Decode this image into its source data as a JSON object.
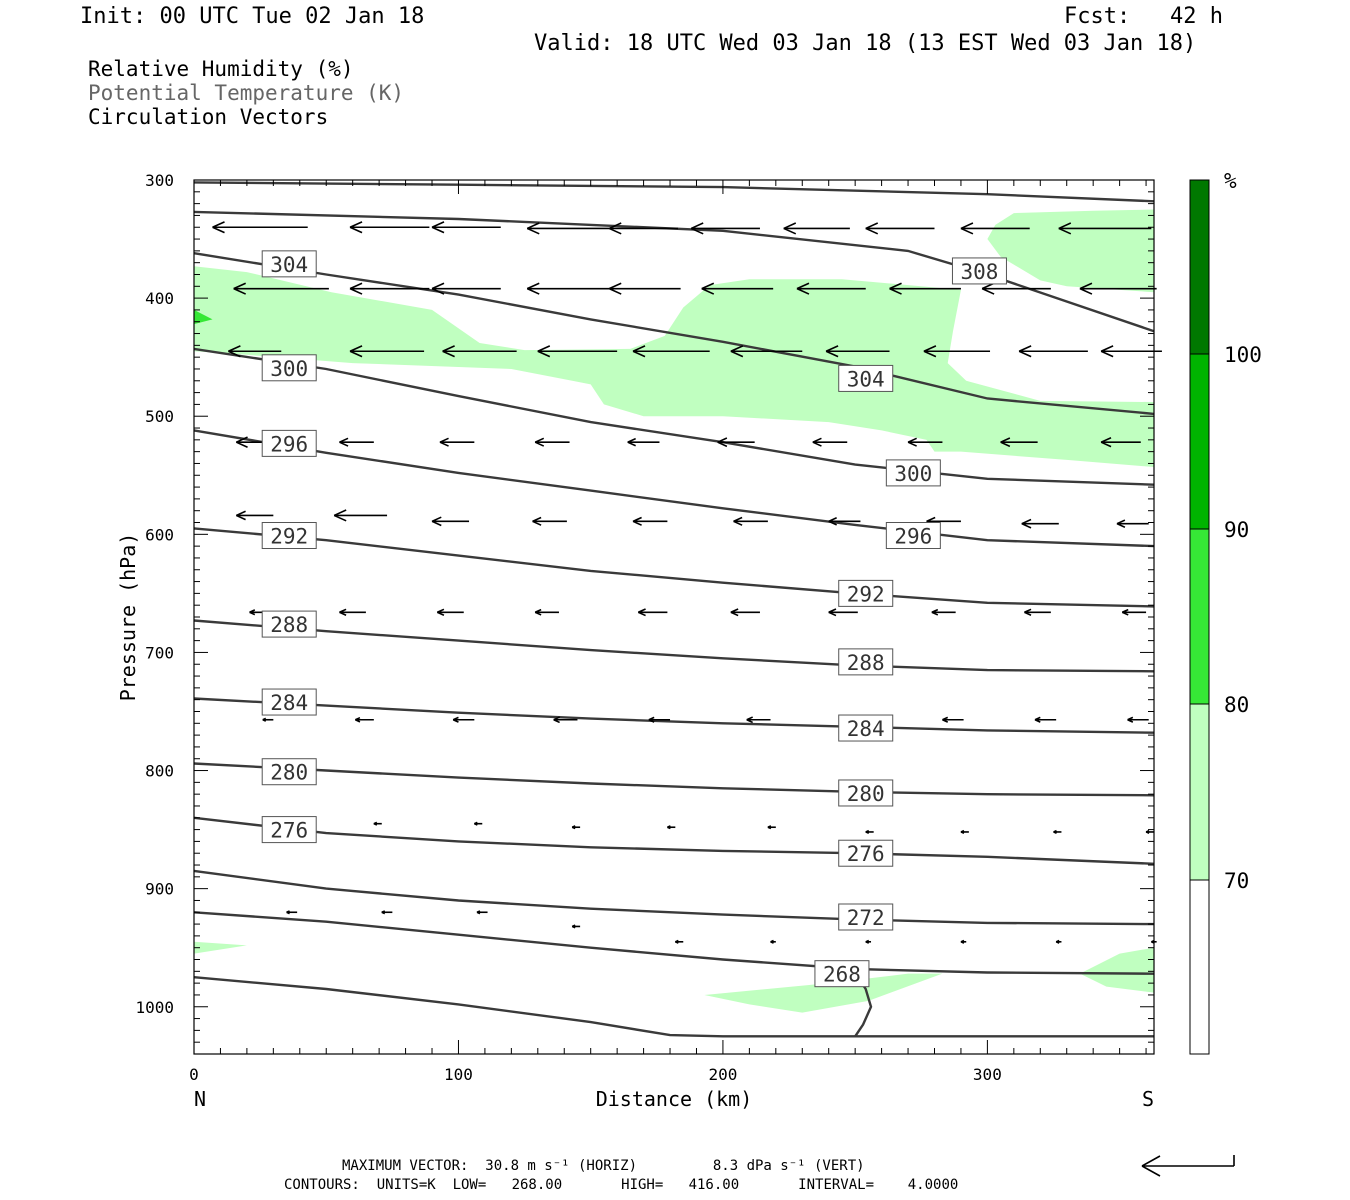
{
  "header": {
    "init": "Init: 00 UTC Tue 02 Jan 18",
    "fcst": "Fcst:   42 h",
    "valid": "Valid: 18 UTC Wed 03 Jan 18 (13 EST Wed 03 Jan 18)"
  },
  "legend": {
    "line1": "Relative Humidity (%)",
    "line2": "Potential Temperature (K)",
    "line3": "Circulation Vectors"
  },
  "footer": {
    "line1": "MAXIMUM VECTOR:  30.8 m s⁻¹ (HORIZ)         8.3 dPa s⁻¹ (VERT)",
    "line2": "CONTOURS:  UNITS=K  LOW=   268.00       HIGH=   416.00       INTERVAL=    4.0000"
  },
  "colors": {
    "rh70": "#c0ffc0",
    "rh80": "#36e836",
    "rh90": "#00b400",
    "rh100": "#007800",
    "theta": "#3a3a3a"
  },
  "chart_data": {
    "type": "contour",
    "xlabel": "Distance (km)",
    "ylabel": "Pressure (hPa)",
    "xlim": [
      0,
      363
    ],
    "ylim": [
      1040,
      300
    ],
    "xticks": [
      0,
      100,
      200,
      300
    ],
    "yticks": [
      300,
      400,
      500,
      600,
      700,
      800,
      900,
      1000
    ],
    "x_end_labels": {
      "left": "N",
      "right": "S"
    },
    "colorbar": {
      "unit": "%",
      "levels": [
        70,
        80,
        90,
        100
      ],
      "labels": [
        "70",
        "80",
        "90",
        "100"
      ]
    },
    "rh_fill_70": [
      [
        [
          0,
          373
        ],
        [
          20,
          378
        ],
        [
          52,
          395
        ],
        [
          90,
          410
        ],
        [
          108,
          438
        ],
        [
          125,
          444
        ],
        [
          165,
          443
        ],
        [
          178,
          432
        ],
        [
          185,
          408
        ],
        [
          195,
          389
        ],
        [
          210,
          384
        ],
        [
          245,
          384
        ],
        [
          290,
          393
        ],
        [
          287,
          428
        ],
        [
          285,
          455
        ],
        [
          292,
          470
        ],
        [
          320,
          487
        ],
        [
          363,
          488
        ],
        [
          363,
          543
        ],
        [
          330,
          537
        ],
        [
          290,
          530
        ],
        [
          280,
          530
        ],
        [
          277,
          520
        ],
        [
          260,
          512
        ],
        [
          240,
          505
        ],
        [
          200,
          500
        ],
        [
          170,
          500
        ],
        [
          155,
          490
        ],
        [
          150,
          473
        ],
        [
          120,
          460
        ],
        [
          60,
          455
        ],
        [
          20,
          448
        ],
        [
          0,
          445
        ]
      ],
      [
        [
          303,
          338
        ],
        [
          310,
          328
        ],
        [
          340,
          326
        ],
        [
          363,
          325
        ],
        [
          363,
          395
        ],
        [
          350,
          393
        ],
        [
          330,
          390
        ],
        [
          320,
          385
        ],
        [
          305,
          365
        ],
        [
          300,
          350
        ]
      ],
      [
        [
          0,
          945
        ],
        [
          20,
          948
        ],
        [
          0,
          955
        ]
      ],
      [
        [
          193,
          990
        ],
        [
          240,
          980
        ],
        [
          270,
          972
        ],
        [
          283,
          972
        ],
        [
          255,
          995
        ],
        [
          230,
          1005
        ],
        [
          210,
          998
        ]
      ],
      [
        [
          335,
          972
        ],
        [
          350,
          955
        ],
        [
          363,
          950
        ],
        [
          363,
          988
        ],
        [
          345,
          983
        ]
      ]
    ],
    "rh_fill_80": [
      [
        [
          0,
          410
        ],
        [
          7,
          418
        ],
        [
          0,
          422
        ]
      ]
    ],
    "theta_contours": [
      {
        "label": "",
        "x": [
          0,
          100,
          200,
          300,
          363
        ],
        "p": [
          302,
          304,
          306,
          312,
          318
        ]
      },
      {
        "label": "308",
        "x": [
          0,
          100,
          200,
          270,
          300,
          363
        ],
        "p": [
          327,
          333,
          343,
          360,
          380,
          428
        ]
      },
      {
        "label": "304",
        "x": [
          0,
          50,
          100,
          150,
          200,
          250,
          300,
          363
        ],
        "p": [
          362,
          380,
          397,
          418,
          437,
          458,
          485,
          498
        ]
      },
      {
        "label": "300",
        "x": [
          0,
          50,
          100,
          150,
          200,
          250,
          300,
          363
        ],
        "p": [
          443,
          460,
          483,
          505,
          522,
          541,
          553,
          558
        ]
      },
      {
        "label": "296",
        "x": [
          0,
          50,
          100,
          150,
          200,
          250,
          300,
          363
        ],
        "p": [
          512,
          531,
          548,
          563,
          578,
          592,
          605,
          610
        ]
      },
      {
        "label": "292",
        "x": [
          0,
          50,
          100,
          150,
          200,
          250,
          300,
          363
        ],
        "p": [
          595,
          605,
          618,
          631,
          641,
          650,
          658,
          661
        ]
      },
      {
        "label": "288",
        "x": [
          0,
          50,
          100,
          150,
          200,
          250,
          300,
          363
        ],
        "p": [
          673,
          682,
          690,
          698,
          705,
          711,
          715,
          716
        ]
      },
      {
        "label": "284",
        "x": [
          0,
          50,
          100,
          150,
          200,
          250,
          300,
          363
        ],
        "p": [
          739,
          745,
          751,
          756,
          760,
          763,
          766,
          768
        ]
      },
      {
        "label": "280",
        "x": [
          0,
          50,
          100,
          150,
          200,
          250,
          300,
          363
        ],
        "p": [
          794,
          800,
          806,
          811,
          815,
          818,
          820,
          821
        ]
      },
      {
        "label": "276",
        "x": [
          0,
          50,
          100,
          150,
          200,
          250,
          300,
          363
        ],
        "p": [
          840,
          853,
          860,
          865,
          868,
          870,
          873,
          879
        ]
      },
      {
        "label": "",
        "x": [
          0,
          50,
          100,
          150,
          200,
          250,
          300,
          363
        ],
        "p": [
          885,
          900,
          910,
          917,
          922,
          926,
          929,
          930
        ]
      },
      {
        "label": "272",
        "x": [
          0,
          50,
          100,
          150,
          200,
          250,
          300,
          363
        ],
        "p": [
          920,
          928,
          939,
          950,
          960,
          968,
          971,
          972
        ]
      },
      {
        "label": "268",
        "x": [
          0,
          50,
          100,
          150,
          180,
          200,
          250,
          300,
          363
        ],
        "p": [
          975,
          985,
          998,
          1013,
          1024,
          1025,
          1025,
          1025,
          1025
        ]
      },
      {
        "label": "",
        "x": [
          251,
          254,
          256,
          253,
          250
        ],
        "p": [
          975,
          985,
          1000,
          1015,
          1025
        ]
      }
    ],
    "theta_labels": [
      {
        "text": "304",
        "x": 36,
        "p": 371
      },
      {
        "text": "308",
        "x": 297,
        "p": 377
      },
      {
        "text": "300",
        "x": 36,
        "p": 459
      },
      {
        "text": "304",
        "x": 254,
        "p": 468
      },
      {
        "text": "296",
        "x": 36,
        "p": 523
      },
      {
        "text": "300",
        "x": 272,
        "p": 548
      },
      {
        "text": "292",
        "x": 36,
        "p": 601
      },
      {
        "text": "296",
        "x": 272,
        "p": 601
      },
      {
        "text": "292",
        "x": 254,
        "p": 650
      },
      {
        "text": "288",
        "x": 36,
        "p": 676
      },
      {
        "text": "288",
        "x": 254,
        "p": 708
      },
      {
        "text": "284",
        "x": 36,
        "p": 742
      },
      {
        "text": "284",
        "x": 254,
        "p": 764
      },
      {
        "text": "280",
        "x": 36,
        "p": 801
      },
      {
        "text": "280",
        "x": 254,
        "p": 819
      },
      {
        "text": "276",
        "x": 36,
        "p": 850
      },
      {
        "text": "276",
        "x": 254,
        "p": 870
      },
      {
        "text": "272",
        "x": 254,
        "p": 924
      },
      {
        "text": "268",
        "x": 245,
        "p": 972
      }
    ],
    "vectors": [
      [
        [
          7,
          340,
          36
        ],
        [
          59,
          340,
          30
        ],
        [
          90,
          340,
          26
        ],
        [
          126,
          341,
          31
        ],
        [
          157,
          341,
          26
        ],
        [
          188,
          341,
          26
        ],
        [
          223,
          341,
          25
        ],
        [
          254,
          341,
          26
        ],
        [
          290,
          341,
          26
        ],
        [
          327,
          341,
          35
        ]
      ],
      [
        [
          15,
          392,
          36
        ],
        [
          59,
          392,
          30
        ],
        [
          90,
          392,
          26
        ],
        [
          126,
          392,
          31
        ],
        [
          157,
          392,
          27
        ],
        [
          192,
          392,
          27
        ],
        [
          228,
          392,
          26
        ],
        [
          263,
          392,
          27
        ],
        [
          298,
          392,
          26
        ],
        [
          335,
          392,
          29
        ]
      ],
      [
        [
          13,
          445,
          20
        ],
        [
          59,
          445,
          28
        ],
        [
          94,
          445,
          28
        ],
        [
          130,
          445,
          30
        ],
        [
          166,
          445,
          29
        ],
        [
          203,
          445,
          27
        ],
        [
          239,
          445,
          24
        ],
        [
          276,
          445,
          25
        ],
        [
          312,
          445,
          26
        ],
        [
          343,
          445,
          23
        ]
      ],
      [
        [
          16,
          522,
          17
        ],
        [
          55,
          522,
          13
        ],
        [
          93,
          522,
          13
        ],
        [
          129,
          522,
          13
        ],
        [
          164,
          522,
          12
        ],
        [
          198,
          522,
          14
        ],
        [
          234,
          522,
          13
        ],
        [
          270,
          522,
          13
        ],
        [
          305,
          522,
          14
        ],
        [
          343,
          522,
          15
        ]
      ],
      [
        [
          16,
          584,
          14
        ],
        [
          53,
          584,
          20
        ],
        [
          90,
          589,
          14
        ],
        [
          128,
          589,
          13
        ],
        [
          166,
          589,
          13
        ],
        [
          204,
          589,
          13
        ],
        [
          240,
          589,
          12
        ],
        [
          277,
          589,
          13
        ],
        [
          313,
          591,
          14
        ],
        [
          349,
          591,
          12
        ]
      ],
      [
        [
          21,
          666,
          8
        ],
        [
          55,
          666,
          10
        ],
        [
          92,
          666,
          10
        ],
        [
          129,
          666,
          9
        ],
        [
          168,
          666,
          11
        ],
        [
          203,
          666,
          11
        ],
        [
          240,
          666,
          11
        ],
        [
          279,
          666,
          9
        ],
        [
          314,
          666,
          10
        ],
        [
          351,
          666,
          9
        ]
      ],
      [
        [
          26,
          757,
          4
        ],
        [
          61,
          757,
          7
        ],
        [
          98,
          757,
          8
        ],
        [
          136,
          757,
          9
        ],
        [
          172,
          757,
          8
        ],
        [
          209,
          757,
          9
        ],
        [
          245,
          757,
          9
        ],
        [
          283,
          757,
          8
        ],
        [
          318,
          757,
          8
        ],
        [
          353,
          757,
          8
        ]
      ],
      [
        [
          31,
          845,
          3
        ],
        [
          68,
          845,
          3
        ],
        [
          106,
          845,
          3
        ],
        [
          143,
          848,
          3
        ],
        [
          179,
          848,
          3
        ],
        [
          217,
          848,
          3
        ],
        [
          254,
          852,
          3
        ],
        [
          290,
          852,
          3
        ],
        [
          325,
          852,
          3
        ],
        [
          360,
          852,
          3
        ]
      ],
      [
        [
          35,
          920,
          4
        ],
        [
          71,
          920,
          4
        ],
        [
          107,
          920,
          4
        ],
        [
          143,
          932,
          3
        ],
        [
          182,
          945,
          3
        ],
        [
          218,
          945,
          2
        ],
        [
          254,
          945,
          2
        ],
        [
          290,
          945,
          2
        ],
        [
          326,
          945,
          2
        ],
        [
          362,
          945,
          2
        ]
      ]
    ]
  }
}
